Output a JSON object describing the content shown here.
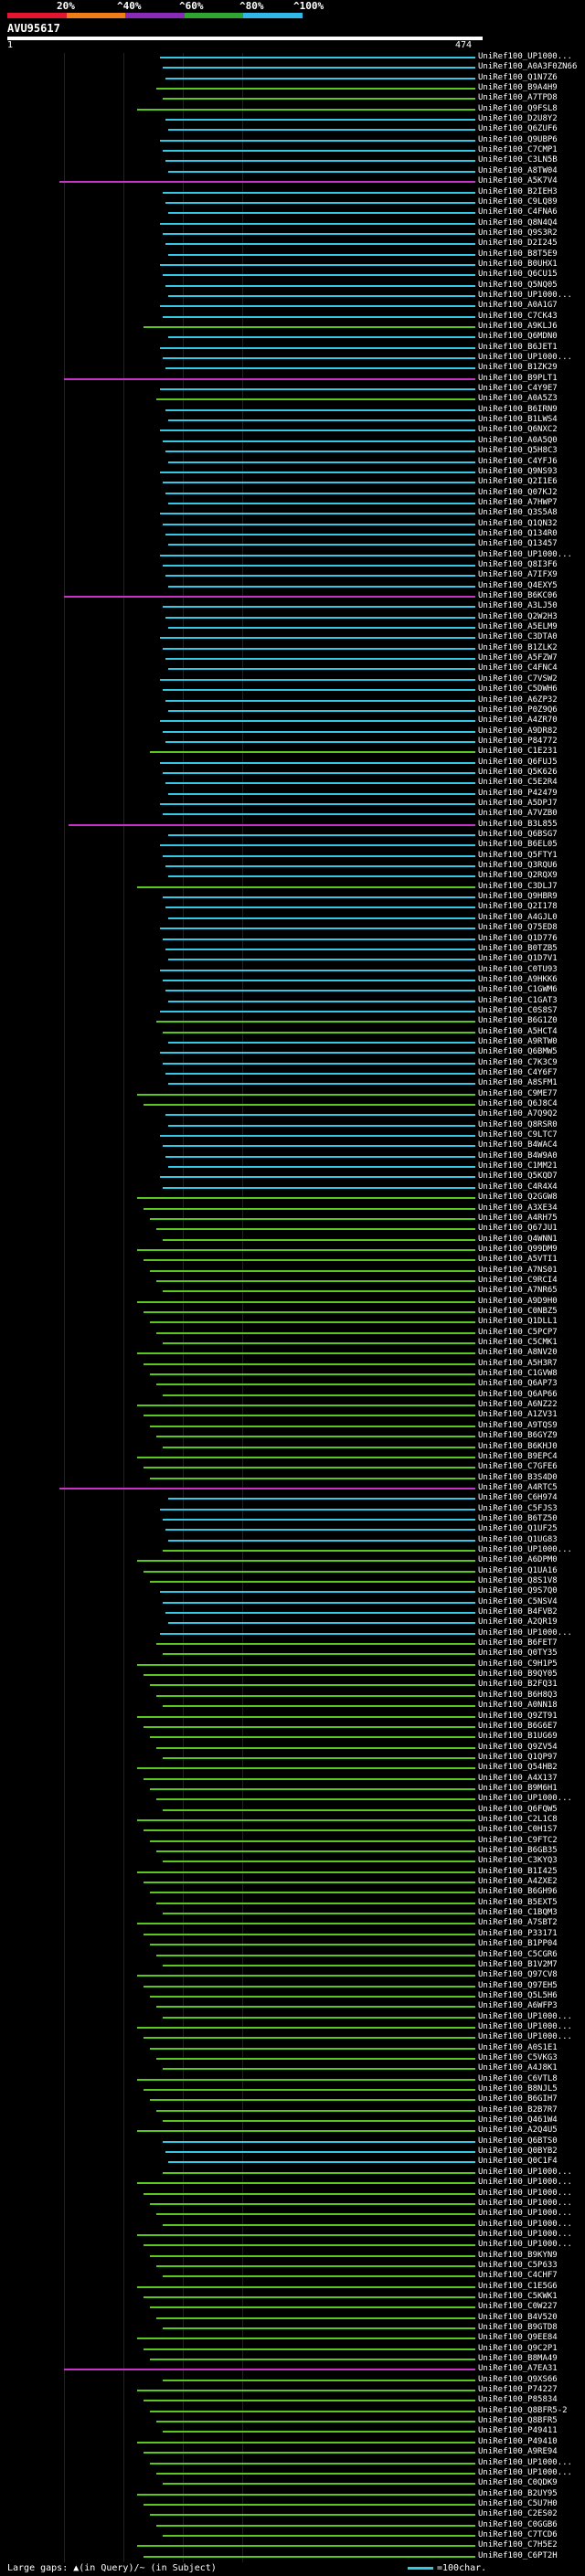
{
  "header": {
    "percent_labels": [
      "20%",
      "^40%",
      "^60%",
      "^80%",
      "^100%"
    ],
    "color_scale": [
      "#E4152E",
      "#F07D18",
      "#8A2BB8",
      "#2FA62F",
      "#2FB8E8"
    ],
    "query_id": "AVU95617",
    "query_start": "1",
    "query_end": "474"
  },
  "legend": {
    "gaps_label": "Large gaps: ▲(in Query)/~ (in Subject)",
    "scale_label": "=100char."
  },
  "hits": [
    {
      "id": "UniRef100_UP1000...",
      "color": "cyan"
    },
    {
      "id": "UniRef100_A0A3F0ZN66",
      "color": "cyan"
    },
    {
      "id": "UniRef100_Q1N7Z6",
      "color": "cyan"
    },
    {
      "id": "UniRef100_B9A4H9",
      "color": "green"
    },
    {
      "id": "UniRef100_A7TPD8",
      "color": "green"
    },
    {
      "id": "UniRef100_Q9FSL8",
      "color": "green"
    },
    {
      "id": "UniRef100_D2U8Y2",
      "color": "cyan"
    },
    {
      "id": "UniRef100_Q6ZUF6",
      "color": "cyan"
    },
    {
      "id": "UniRef100_Q9UBP6",
      "color": "cyan"
    },
    {
      "id": "UniRef100_C7CMP1",
      "color": "cyan"
    },
    {
      "id": "UniRef100_C3LN5B",
      "color": "cyan"
    },
    {
      "id": "UniRef100_A8TW04",
      "color": "cyan"
    },
    {
      "id": "UniRef100_A5K7V4",
      "color": "magenta"
    },
    {
      "id": "UniRef100_B2IEH3",
      "color": "cyan"
    },
    {
      "id": "UniRef100_C9LQ89",
      "color": "cyan"
    },
    {
      "id": "UniRef100_C4FNA6",
      "color": "cyan"
    },
    {
      "id": "UniRef100_Q8N4Q4",
      "color": "cyan"
    },
    {
      "id": "UniRef100_Q9S3R2",
      "color": "cyan"
    },
    {
      "id": "UniRef100_D2I245",
      "color": "cyan"
    },
    {
      "id": "UniRef100_B8T5E9",
      "color": "cyan"
    },
    {
      "id": "UniRef100_B0UHX1",
      "color": "cyan"
    },
    {
      "id": "UniRef100_Q6CU15",
      "color": "cyan"
    },
    {
      "id": "UniRef100_Q5NQ05",
      "color": "cyan"
    },
    {
      "id": "UniRef100_UP1000...",
      "color": "cyan"
    },
    {
      "id": "UniRef100_A0A1G7",
      "color": "cyan"
    },
    {
      "id": "UniRef100_C7CK43",
      "color": "cyan"
    },
    {
      "id": "UniRef100_A9KLJ6",
      "color": "green"
    },
    {
      "id": "UniRef100_Q6MDN0",
      "color": "cyan"
    },
    {
      "id": "UniRef100_B6JET1",
      "color": "cyan"
    },
    {
      "id": "UniRef100_UP1000...",
      "color": "cyan"
    },
    {
      "id": "UniRef100_B1ZK29",
      "color": "cyan"
    },
    {
      "id": "UniRef100_B9PLT1",
      "color": "magenta"
    },
    {
      "id": "UniRef100_C4Y9E7",
      "color": "cyan"
    },
    {
      "id": "UniRef100_A0A5Z3",
      "color": "green"
    },
    {
      "id": "UniRef100_B6IRN9",
      "color": "cyan"
    },
    {
      "id": "UniRef100_B1LWS4",
      "color": "cyan"
    },
    {
      "id": "UniRef100_Q6NXC2",
      "color": "cyan"
    },
    {
      "id": "UniRef100_A0A5Q0",
      "color": "cyan"
    },
    {
      "id": "UniRef100_Q5H8C3",
      "color": "cyan"
    },
    {
      "id": "UniRef100_C4YFJ6",
      "color": "cyan"
    },
    {
      "id": "UniRef100_Q9NS93",
      "color": "cyan"
    },
    {
      "id": "UniRef100_Q2I1E6",
      "color": "cyan"
    },
    {
      "id": "UniRef100_Q07KJ2",
      "color": "cyan"
    },
    {
      "id": "UniRef100_A7HWP7",
      "color": "cyan"
    },
    {
      "id": "UniRef100_Q3S5A8",
      "color": "cyan"
    },
    {
      "id": "UniRef100_Q1QN32",
      "color": "cyan"
    },
    {
      "id": "UniRef100_Q134R0",
      "color": "cyan"
    },
    {
      "id": "UniRef100_Q13457",
      "color": "cyan"
    },
    {
      "id": "UniRef100_UP1000...",
      "color": "cyan"
    },
    {
      "id": "UniRef100_Q8I3F6",
      "color": "cyan"
    },
    {
      "id": "UniRef100_A7IFX9",
      "color": "cyan"
    },
    {
      "id": "UniRef100_Q4EXY5",
      "color": "cyan"
    },
    {
      "id": "UniRef100_B6KC06",
      "color": "magenta"
    },
    {
      "id": "UniRef100_A3LJ50",
      "color": "cyan"
    },
    {
      "id": "UniRef100_Q2W2H3",
      "color": "cyan"
    },
    {
      "id": "UniRef100_A5ELM9",
      "color": "cyan"
    },
    {
      "id": "UniRef100_C3DTA0",
      "color": "cyan"
    },
    {
      "id": "UniRef100_B1ZLK2",
      "color": "cyan"
    },
    {
      "id": "UniRef100_A5FZW7",
      "color": "cyan"
    },
    {
      "id": "UniRef100_C4FNC4",
      "color": "cyan"
    },
    {
      "id": "UniRef100_C7VSW2",
      "color": "cyan"
    },
    {
      "id": "UniRef100_C5DWH6",
      "color": "cyan"
    },
    {
      "id": "UniRef100_A6ZP32",
      "color": "cyan"
    },
    {
      "id": "UniRef100_P0Z9Q6",
      "color": "cyan"
    },
    {
      "id": "UniRef100_A4ZR70",
      "color": "cyan"
    },
    {
      "id": "UniRef100_A9DR82",
      "color": "cyan"
    },
    {
      "id": "UniRef100_P84772",
      "color": "cyan"
    },
    {
      "id": "UniRef100_C1E231",
      "color": "green"
    },
    {
      "id": "UniRef100_Q6FUJ5",
      "color": "cyan"
    },
    {
      "id": "UniRef100_Q5K626",
      "color": "cyan"
    },
    {
      "id": "UniRef100_C5E2R4",
      "color": "cyan"
    },
    {
      "id": "UniRef100_P42479",
      "color": "cyan"
    },
    {
      "id": "UniRef100_A5DPJ7",
      "color": "cyan"
    },
    {
      "id": "UniRef100_A7VZB0",
      "color": "cyan"
    },
    {
      "id": "UniRef100_B3L855",
      "color": "magenta"
    },
    {
      "id": "UniRef100_Q6BSG7",
      "color": "cyan"
    },
    {
      "id": "UniRef100_B6EL05",
      "color": "cyan"
    },
    {
      "id": "UniRef100_Q5FTY1",
      "color": "cyan"
    },
    {
      "id": "UniRef100_Q3RQU6",
      "color": "cyan"
    },
    {
      "id": "UniRef100_Q2RQX9",
      "color": "cyan"
    },
    {
      "id": "UniRef100_C3DLJ7",
      "color": "green"
    },
    {
      "id": "UniRef100_Q9HBR9",
      "color": "cyan"
    },
    {
      "id": "UniRef100_Q2I178",
      "color": "cyan"
    },
    {
      "id": "UniRef100_A4GJL0",
      "color": "cyan"
    },
    {
      "id": "UniRef100_Q75ED8",
      "color": "cyan"
    },
    {
      "id": "UniRef100_Q1D776",
      "color": "cyan"
    },
    {
      "id": "UniRef100_B0TZB5",
      "color": "cyan"
    },
    {
      "id": "UniRef100_Q1D7V1",
      "color": "cyan"
    },
    {
      "id": "UniRef100_C0TU93",
      "color": "cyan"
    },
    {
      "id": "UniRef100_A9HKK6",
      "color": "cyan"
    },
    {
      "id": "UniRef100_C1GWM6",
      "color": "cyan"
    },
    {
      "id": "UniRef100_C1GAT3",
      "color": "cyan"
    },
    {
      "id": "UniRef100_C0S8S7",
      "color": "cyan"
    },
    {
      "id": "UniRef100_B6G1Z0",
      "color": "green"
    },
    {
      "id": "UniRef100_A5HCT4",
      "color": "green"
    },
    {
      "id": "UniRef100_A9RTW0",
      "color": "cyan"
    },
    {
      "id": "UniRef100_Q6BMW5",
      "color": "cyan"
    },
    {
      "id": "UniRef100_C7K3C9",
      "color": "cyan"
    },
    {
      "id": "UniRef100_C4Y6F7",
      "color": "cyan"
    },
    {
      "id": "UniRef100_A8SFM1",
      "color": "cyan"
    },
    {
      "id": "UniRef100_C9ME77",
      "color": "green"
    },
    {
      "id": "UniRef100_Q6J8C4",
      "color": "green"
    },
    {
      "id": "UniRef100_A7Q9Q2",
      "color": "cyan"
    },
    {
      "id": "UniRef100_Q8RSR0",
      "color": "cyan"
    },
    {
      "id": "UniRef100_C9LTC7",
      "color": "cyan"
    },
    {
      "id": "UniRef100_B4WAC4",
      "color": "cyan"
    },
    {
      "id": "UniRef100_B4W9A0",
      "color": "cyan"
    },
    {
      "id": "UniRef100_C1MM21",
      "color": "cyan"
    },
    {
      "id": "UniRef100_Q5KQD7",
      "color": "cyan"
    },
    {
      "id": "UniRef100_C4R4X4",
      "color": "cyan"
    },
    {
      "id": "UniRef100_Q2GGW8",
      "color": "green"
    },
    {
      "id": "UniRef100_A3XE34",
      "color": "green"
    },
    {
      "id": "UniRef100_A4RH75",
      "color": "green"
    },
    {
      "id": "UniRef100_Q67JU1",
      "color": "green"
    },
    {
      "id": "UniRef100_Q4WNN1",
      "color": "green"
    },
    {
      "id": "UniRef100_Q99DM9",
      "color": "green"
    },
    {
      "id": "UniRef100_A5VTI1",
      "color": "green"
    },
    {
      "id": "UniRef100_A7NS01",
      "color": "green"
    },
    {
      "id": "UniRef100_C9RCI4",
      "color": "green"
    },
    {
      "id": "UniRef100_A7NR65",
      "color": "green"
    },
    {
      "id": "UniRef100_A9D9H0",
      "color": "green"
    },
    {
      "id": "UniRef100_C0NBZ5",
      "color": "green"
    },
    {
      "id": "UniRef100_Q1DLL1",
      "color": "green"
    },
    {
      "id": "UniRef100_C5PCP7",
      "color": "green"
    },
    {
      "id": "UniRef100_C5CMK1",
      "color": "green"
    },
    {
      "id": "UniRef100_A8NV20",
      "color": "green"
    },
    {
      "id": "UniRef100_A5H3R7",
      "color": "green"
    },
    {
      "id": "UniRef100_C1GVW8",
      "color": "green"
    },
    {
      "id": "UniRef100_Q6AP73",
      "color": "green"
    },
    {
      "id": "UniRef100_Q6AP66",
      "color": "green"
    },
    {
      "id": "UniRef100_A6NZ22",
      "color": "green"
    },
    {
      "id": "UniRef100_A1ZV31",
      "color": "green"
    },
    {
      "id": "UniRef100_A9TQS9",
      "color": "green"
    },
    {
      "id": "UniRef100_B6GYZ9",
      "color": "green"
    },
    {
      "id": "UniRef100_B6KHJ0",
      "color": "green"
    },
    {
      "id": "UniRef100_B9EPC4",
      "color": "green"
    },
    {
      "id": "UniRef100_C7GFE6",
      "color": "green"
    },
    {
      "id": "UniRef100_B3S4D0",
      "color": "green"
    },
    {
      "id": "UniRef100_A4RTC5",
      "color": "magenta"
    },
    {
      "id": "UniRef100_C6H974",
      "color": "cyan"
    },
    {
      "id": "UniRef100_C5FJS3",
      "color": "cyan"
    },
    {
      "id": "UniRef100_B6TZ50",
      "color": "cyan"
    },
    {
      "id": "UniRef100_Q1UF25",
      "color": "cyan"
    },
    {
      "id": "UniRef100_Q1UG83",
      "color": "cyan"
    },
    {
      "id": "UniRef100_UP1000...",
      "color": "green"
    },
    {
      "id": "UniRef100_A6DPM0",
      "color": "green"
    },
    {
      "id": "UniRef100_Q1UA16",
      "color": "green"
    },
    {
      "id": "UniRef100_Q8S1V8",
      "color": "green"
    },
    {
      "id": "UniRef100_Q9S7Q0",
      "color": "cyan"
    },
    {
      "id": "UniRef100_C5NSV4",
      "color": "cyan"
    },
    {
      "id": "UniRef100_B4FVB2",
      "color": "cyan"
    },
    {
      "id": "UniRef100_A2QR19",
      "color": "cyan"
    },
    {
      "id": "UniRef100_UP1000...",
      "color": "cyan"
    },
    {
      "id": "UniRef100_B6FET7",
      "color": "green"
    },
    {
      "id": "UniRef100_Q0TY35",
      "color": "green"
    },
    {
      "id": "UniRef100_C9H1P5",
      "color": "green"
    },
    {
      "id": "UniRef100_B9QY05",
      "color": "green"
    },
    {
      "id": "UniRef100_B2FQ31",
      "color": "green"
    },
    {
      "id": "UniRef100_B6H8Q3",
      "color": "green"
    },
    {
      "id": "UniRef100_A0NN18",
      "color": "green"
    },
    {
      "id": "UniRef100_Q9ZT91",
      "color": "green"
    },
    {
      "id": "UniRef100_B6G6E7",
      "color": "green"
    },
    {
      "id": "UniRef100_B1UG69",
      "color": "green"
    },
    {
      "id": "UniRef100_Q9ZV54",
      "color": "green"
    },
    {
      "id": "UniRef100_Q1QP97",
      "color": "green"
    },
    {
      "id": "UniRef100_Q54HB2",
      "color": "green"
    },
    {
      "id": "UniRef100_A4X137",
      "color": "green"
    },
    {
      "id": "UniRef100_B9M6H1",
      "color": "green"
    },
    {
      "id": "UniRef100_UP1000...",
      "color": "green"
    },
    {
      "id": "UniRef100_Q6FQW5",
      "color": "green"
    },
    {
      "id": "UniRef100_C2L1C8",
      "color": "green"
    },
    {
      "id": "UniRef100_C0H1S7",
      "color": "green"
    },
    {
      "id": "UniRef100_C9FTC2",
      "color": "green"
    },
    {
      "id": "UniRef100_B6GB35",
      "color": "green"
    },
    {
      "id": "UniRef100_C3KYQ3",
      "color": "green"
    },
    {
      "id": "UniRef100_B1I425",
      "color": "green"
    },
    {
      "id": "UniRef100_A4ZXE2",
      "color": "green"
    },
    {
      "id": "UniRef100_B6GH96",
      "color": "green"
    },
    {
      "id": "UniRef100_B5EXT5",
      "color": "green"
    },
    {
      "id": "UniRef100_C1BQM3",
      "color": "green"
    },
    {
      "id": "UniRef100_A7SBT2",
      "color": "green"
    },
    {
      "id": "UniRef100_P33171",
      "color": "green"
    },
    {
      "id": "UniRef100_B1PP04",
      "color": "green"
    },
    {
      "id": "UniRef100_C5CGR6",
      "color": "green"
    },
    {
      "id": "UniRef100_B1V2M7",
      "color": "green"
    },
    {
      "id": "UniRef100_Q97CV8",
      "color": "green"
    },
    {
      "id": "UniRef100_Q97EH5",
      "color": "green"
    },
    {
      "id": "UniRef100_Q5L5H6",
      "color": "green"
    },
    {
      "id": "UniRef100_A6WFP3",
      "color": "green"
    },
    {
      "id": "UniRef100_UP1000...",
      "color": "green"
    },
    {
      "id": "UniRef100_UP1000...",
      "color": "green"
    },
    {
      "id": "UniRef100_UP1000...",
      "color": "green"
    },
    {
      "id": "UniRef100_A0S1E1",
      "color": "green"
    },
    {
      "id": "UniRef100_C5VKG3",
      "color": "green"
    },
    {
      "id": "UniRef100_A4J8K1",
      "color": "green"
    },
    {
      "id": "UniRef100_C6VTL8",
      "color": "green"
    },
    {
      "id": "UniRef100_B8NJL5",
      "color": "green"
    },
    {
      "id": "UniRef100_B6GIH7",
      "color": "green"
    },
    {
      "id": "UniRef100_B2B7R7",
      "color": "green"
    },
    {
      "id": "UniRef100_Q461W4",
      "color": "green"
    },
    {
      "id": "UniRef100_A2Q4U5",
      "color": "green"
    },
    {
      "id": "UniRef100_Q6BTS0",
      "color": "cyan"
    },
    {
      "id": "UniRef100_Q0BYB2",
      "color": "cyan"
    },
    {
      "id": "UniRef100_Q0C1F4",
      "color": "cyan"
    },
    {
      "id": "UniRef100_UP1000...",
      "color": "green"
    },
    {
      "id": "UniRef100_UP1000...",
      "color": "green"
    },
    {
      "id": "UniRef100_UP1000...",
      "color": "green"
    },
    {
      "id": "UniRef100_UP1000...",
      "color": "green"
    },
    {
      "id": "UniRef100_UP1000...",
      "color": "green"
    },
    {
      "id": "UniRef100_UP1000...",
      "color": "green"
    },
    {
      "id": "UniRef100_UP1000...",
      "color": "green"
    },
    {
      "id": "UniRef100_UP1000...",
      "color": "green"
    },
    {
      "id": "UniRef100_B9KYN9",
      "color": "green"
    },
    {
      "id": "UniRef100_C5P633",
      "color": "green"
    },
    {
      "id": "UniRef100_C4CHF7",
      "color": "green"
    },
    {
      "id": "UniRef100_C1E5G6",
      "color": "green"
    },
    {
      "id": "UniRef100_C5KWK1",
      "color": "green"
    },
    {
      "id": "UniRef100_C0W227",
      "color": "green"
    },
    {
      "id": "UniRef100_B4V520",
      "color": "green"
    },
    {
      "id": "UniRef100_B9GTD8",
      "color": "green"
    },
    {
      "id": "UniRef100_Q9EE84",
      "color": "green"
    },
    {
      "id": "UniRef100_Q9C2P1",
      "color": "green"
    },
    {
      "id": "UniRef100_B8MA49",
      "color": "green"
    },
    {
      "id": "UniRef100_A7EA31",
      "color": "magenta"
    },
    {
      "id": "UniRef100_Q9XS66",
      "color": "green"
    },
    {
      "id": "UniRef100_P74227",
      "color": "green"
    },
    {
      "id": "UniRef100_P85834",
      "color": "green"
    },
    {
      "id": "UniRef100_Q8BFR5-2",
      "color": "green"
    },
    {
      "id": "UniRef100_Q8BFR5",
      "color": "green"
    },
    {
      "id": "UniRef100_P49411",
      "color": "green"
    },
    {
      "id": "UniRef100_P49410",
      "color": "green"
    },
    {
      "id": "UniRef100_A9RE94",
      "color": "green"
    },
    {
      "id": "UniRef100_UP1000...",
      "color": "green"
    },
    {
      "id": "UniRef100_UP1000...",
      "color": "green"
    },
    {
      "id": "UniRef100_C0QDK9",
      "color": "green"
    },
    {
      "id": "UniRef100_B2UY95",
      "color": "green"
    },
    {
      "id": "UniRef100_C5U7H0",
      "color": "green"
    },
    {
      "id": "UniRef100_C2ES02",
      "color": "green"
    },
    {
      "id": "UniRef100_C0GGB6",
      "color": "green"
    },
    {
      "id": "UniRef100_C7TCD6",
      "color": "green"
    },
    {
      "id": "UniRef100_C7H5E2",
      "color": "green"
    },
    {
      "id": "UniRef100_C6PT2H",
      "color": "green"
    }
  ]
}
